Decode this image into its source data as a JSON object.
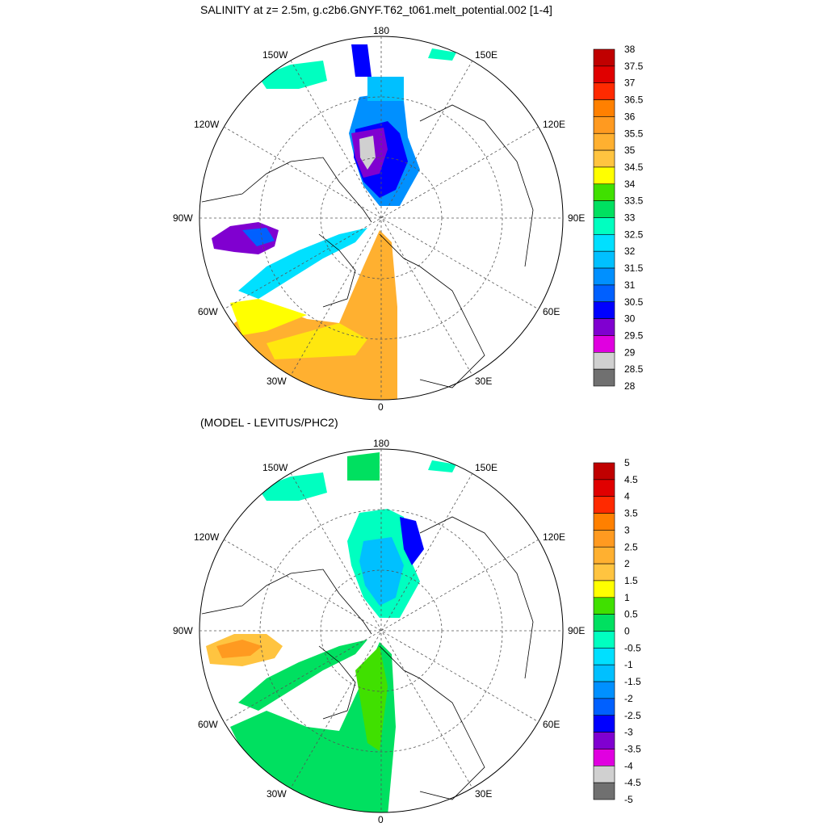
{
  "panels": [
    {
      "id": "top",
      "title": "SALINITY at z=   2.5m, g.c2b6.GNYF.T62_t061.melt_potential.002 [1-4]",
      "lon_labels": [
        "180",
        "150E",
        "120E",
        "90E",
        "60E",
        "30E",
        "0",
        "30W",
        "60W",
        "90W",
        "120W",
        "150W"
      ],
      "colorbar": {
        "labels": [
          "38",
          "37.5",
          "37",
          "36.5",
          "36",
          "35.5",
          "35",
          "34.5",
          "34",
          "33.5",
          "33",
          "32.5",
          "32",
          "31.5",
          "31",
          "30.5",
          "30",
          "29.5",
          "29",
          "28.5",
          "28"
        ],
        "colors": [
          "#c00000",
          "#e00000",
          "#ff2a00",
          "#ff8000",
          "#ff9a20",
          "#ffb030",
          "#ffc440",
          "#ffff00",
          "#40e000",
          "#00e060",
          "#00ffc0",
          "#00e0ff",
          "#00c0ff",
          "#0090ff",
          "#0060ff",
          "#0000ff",
          "#8000d0",
          "#e000e0",
          "#d0d0d0",
          "#707070"
        ]
      }
    },
    {
      "id": "bottom",
      "title": "(MODEL - LEVITUS/PHC2)",
      "lon_labels": [
        "180",
        "150E",
        "120E",
        "90E",
        "60E",
        "30E",
        "0",
        "30W",
        "60W",
        "90W",
        "120W",
        "150W"
      ],
      "colorbar": {
        "labels": [
          "5",
          "4.5",
          "4",
          "3.5",
          "3",
          "2.5",
          "2",
          "1.5",
          "1",
          "0.5",
          "0",
          "-0.5",
          "-1",
          "-1.5",
          "-2",
          "-2.5",
          "-3",
          "-3.5",
          "-4",
          "-4.5",
          "-5"
        ],
        "colors": [
          "#c00000",
          "#e00000",
          "#ff2a00",
          "#ff8000",
          "#ff9a20",
          "#ffb030",
          "#ffc440",
          "#ffff00",
          "#40e000",
          "#00e060",
          "#00ffc0",
          "#00e0ff",
          "#00c0ff",
          "#0090ff",
          "#0060ff",
          "#0000ff",
          "#8000d0",
          "#e000e0",
          "#d0d0d0",
          "#707070"
        ]
      }
    }
  ]
}
